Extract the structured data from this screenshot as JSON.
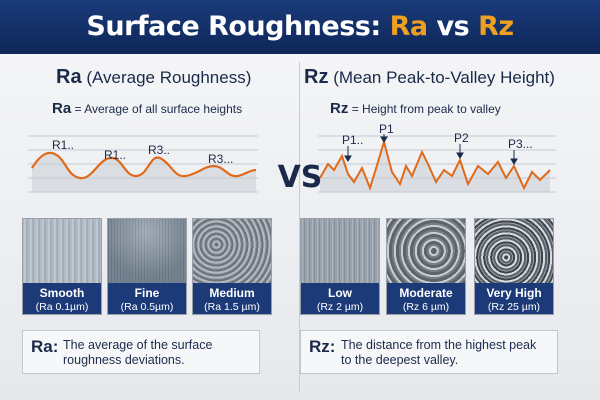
{
  "title": {
    "part1": "Surface Roughness: ",
    "ra": "Ra",
    "vs": " vs ",
    "rz": "Rz"
  },
  "center_vs": "VS",
  "left": {
    "heading_key": "Ra",
    "heading_text": "(Average Roughness)",
    "sub_key": "Ra",
    "sub_text": "= Average of all surface heights",
    "peak_labels": [
      "R1..",
      "R1..",
      "R3..",
      "R3..."
    ],
    "samples": [
      {
        "name": "Smooth",
        "value": "(Ra 0.1µm)",
        "texture": "smooth"
      },
      {
        "name": "Fine",
        "value": "(Ra 0.5µm)",
        "texture": "fine"
      },
      {
        "name": "Medium",
        "value": "(Ra 1.5 µm)",
        "texture": "medium"
      }
    ],
    "note_key": "Ra:",
    "note_line1": "The average of the surface",
    "note_line2": "roughness deviations."
  },
  "right": {
    "heading_key": "Rz",
    "heading_text": "(Mean Peak-to-Valley Height)",
    "sub_key": "Rz",
    "sub_text": "= Height from peak to valley",
    "peak_labels": [
      "P1..",
      "P1",
      "P2",
      "P3..."
    ],
    "samples": [
      {
        "name": "Low",
        "value": "(Rz 2 µm)",
        "texture": "low"
      },
      {
        "name": "Moderate",
        "value": "(Rz 6 µm)",
        "texture": "moderate"
      },
      {
        "name": "Very High",
        "value": "(Rz 25 µm)",
        "texture": "vhigh"
      }
    ],
    "note_key": "Rz:",
    "note_line1": "The distance from the highest peak",
    "note_line2": "to the deepest valley."
  },
  "colors": {
    "banner": "#0e2758",
    "accent": "#f0a020",
    "profile": "#e06a1a",
    "caption_bg": "#1c3a78"
  }
}
